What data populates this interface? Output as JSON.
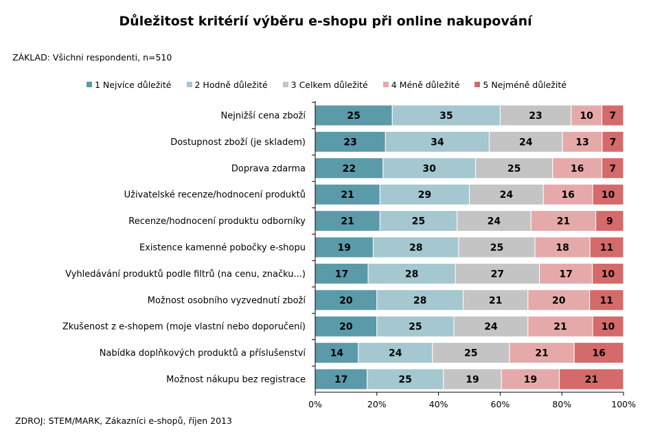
{
  "chart_data": {
    "type": "bar",
    "orientation": "horizontal",
    "stacked": true,
    "title": "Důležitost kritérií výběru e-shopu při online nakupování",
    "base_note": "ZÁKLAD: Všichni respondenti, n=510",
    "source_note": "ZDROJ: STEM/MARK, Zákazníci e-shopů, říjen 2013",
    "categories": [
      "Nejnižší cena zboží",
      "Dostupnost zboží (je skladem)",
      "Doprava zdarma",
      "Uživatelské recenze/hodnocení produktů",
      "Recenze/hodnocení produktu odborníky",
      "Existence kamenné pobočky e-shopu",
      "Vyhledávání produktů podle filtrů (na cenu, značku...)",
      "Možnost osobního vyzvednutí zboží",
      "Zkušenost z e-shopem (moje vlastní nebo doporučení)",
      "Nabídka doplňkových produktů a příslušenství",
      "Možnost nákupu bez registrace"
    ],
    "series": [
      {
        "name": "1 Nejvíce důležité",
        "color": "#5b9aa8",
        "values": [
          25,
          23,
          22,
          21,
          21,
          19,
          17,
          20,
          20,
          14,
          17
        ]
      },
      {
        "name": "2 Hodně důležité",
        "color": "#a4c7d0",
        "values": [
          35,
          34,
          30,
          29,
          25,
          28,
          28,
          28,
          25,
          24,
          25
        ]
      },
      {
        "name": "3 Celkem důležité",
        "color": "#c4c4c4",
        "values": [
          23,
          24,
          25,
          24,
          24,
          25,
          27,
          21,
          24,
          25,
          19
        ]
      },
      {
        "name": "4 Méně důležité",
        "color": "#e6a9a9",
        "values": [
          10,
          13,
          16,
          16,
          21,
          18,
          17,
          20,
          21,
          21,
          19
        ]
      },
      {
        "name": "5 Nejméně důležité",
        "color": "#d46a6a",
        "values": [
          7,
          7,
          7,
          10,
          9,
          11,
          10,
          11,
          10,
          16,
          21
        ]
      }
    ],
    "x_ticks": [
      "0%",
      "20%",
      "40%",
      "60%",
      "80%",
      "100%"
    ],
    "xlim": [
      0,
      100
    ],
    "grid": false,
    "legend_position": "top"
  }
}
